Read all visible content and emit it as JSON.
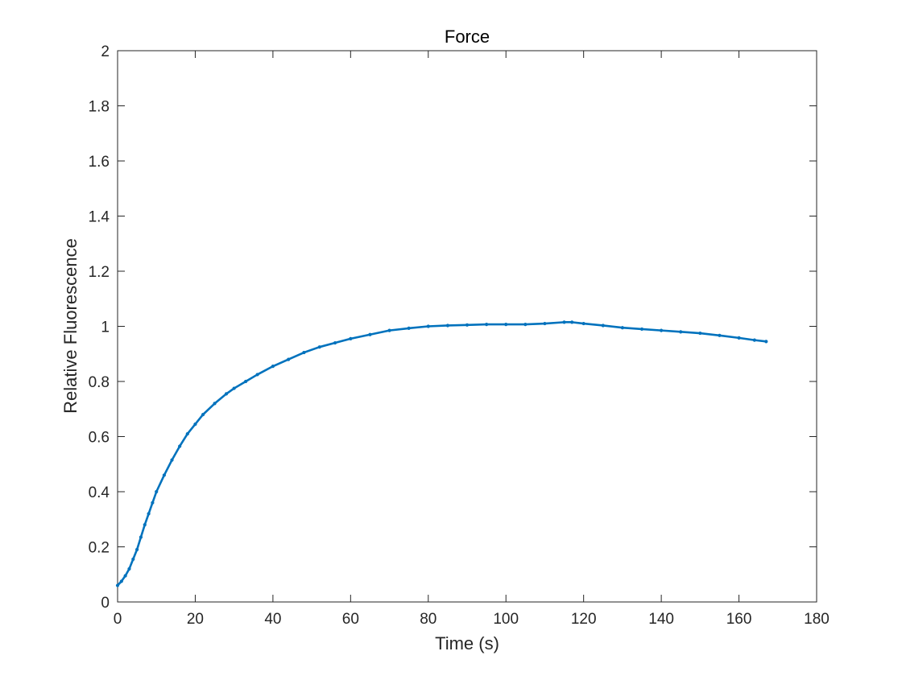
{
  "chart_data": {
    "type": "line",
    "title": "Force",
    "xlabel": "Time (s)",
    "ylabel": "Relative Fluorescence",
    "xlim": [
      0,
      180
    ],
    "ylim": [
      0,
      2
    ],
    "x_ticks": [
      "0",
      "20",
      "40",
      "60",
      "80",
      "100",
      "120",
      "140",
      "160",
      "180"
    ],
    "y_ticks": [
      "0",
      "0.2",
      "0.4",
      "0.6",
      "0.8",
      "1",
      "1.2",
      "1.4",
      "1.6",
      "1.8",
      "2"
    ],
    "grid": false,
    "legend": "none",
    "color": "#0072BD",
    "series": [
      {
        "x": [
          0,
          1,
          2,
          3,
          4,
          5,
          6,
          7,
          8,
          9,
          10,
          12,
          14,
          16,
          18,
          20,
          22,
          25,
          28,
          30,
          33,
          36,
          40,
          44,
          48,
          52,
          56,
          60,
          65,
          70,
          75,
          80,
          85,
          90,
          95,
          100,
          105,
          110,
          115,
          117,
          120,
          125,
          130,
          135,
          140,
          145,
          150,
          155,
          160,
          164,
          167
        ],
        "y": [
          0.06,
          0.075,
          0.095,
          0.12,
          0.155,
          0.19,
          0.235,
          0.28,
          0.32,
          0.36,
          0.4,
          0.46,
          0.515,
          0.565,
          0.61,
          0.645,
          0.68,
          0.72,
          0.755,
          0.775,
          0.8,
          0.825,
          0.855,
          0.88,
          0.905,
          0.925,
          0.94,
          0.955,
          0.97,
          0.985,
          0.993,
          1.0,
          1.003,
          1.005,
          1.007,
          1.007,
          1.007,
          1.01,
          1.015,
          1.015,
          1.01,
          1.003,
          0.995,
          0.99,
          0.985,
          0.98,
          0.975,
          0.967,
          0.958,
          0.95,
          0.945
        ]
      }
    ]
  }
}
